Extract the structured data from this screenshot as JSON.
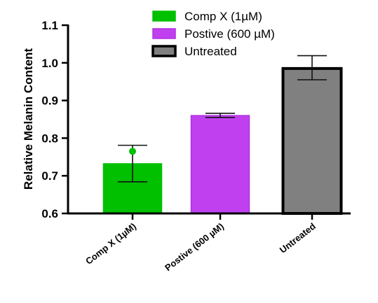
{
  "chart_data": {
    "type": "bar",
    "title": "",
    "xlabel": "",
    "ylabel": "Relative Melanin Content",
    "ylim": [
      0.6,
      1.1
    ],
    "yticks": [
      0.6,
      0.7,
      0.8,
      0.9,
      1.0,
      1.1
    ],
    "ytick_labels": [
      "0.6",
      "0.7",
      "0.8",
      "0.9",
      "1.0",
      "1.1"
    ],
    "grid": false,
    "legend_position": "top-center",
    "categories": [
      "Comp X (1µM)",
      "Postive (600 µM)",
      "Untreated"
    ],
    "bars": [
      {
        "value": 0.732,
        "err_upper": 0.781,
        "err_lower": 0.684,
        "fill": "#00c000",
        "edge": "#00c000",
        "point": 0.765
      },
      {
        "value": 0.86,
        "err_upper": 0.866,
        "err_lower": 0.855,
        "fill": "#c040f0",
        "edge": "#b030e0"
      },
      {
        "value": 0.985,
        "err_upper": 1.019,
        "err_lower": 0.955,
        "fill": "#808080",
        "edge": "#000000"
      }
    ],
    "legend": [
      {
        "label": "Comp X (1µM)",
        "color": "#00c000",
        "edge": "#00c000"
      },
      {
        "label": "Postive (600 µM)",
        "color": "#c040f0",
        "edge": "#b030e0"
      },
      {
        "label": "Untreated",
        "color": "#808080",
        "edge": "#000000"
      }
    ]
  }
}
